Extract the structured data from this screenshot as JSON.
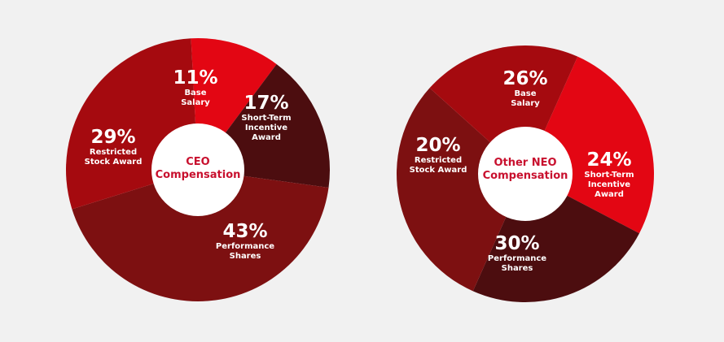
{
  "colors": {
    "background": "#f1f1f1",
    "base_salary": "#e30613",
    "short_term_incentive": "#4c0d0f",
    "performance_shares": "#7d1011",
    "restricted_stock": "#a50a0f",
    "center_text": "#c8102e"
  },
  "chart_data": [
    {
      "type": "pie",
      "title": "CEO\nCompensation",
      "slices": [
        {
          "label": "Base\nSalary",
          "value": 11,
          "display": "11%",
          "color": "#e30613"
        },
        {
          "label": "Short-Term\nIncentive\nAward",
          "value": 17,
          "display": "17%",
          "color": "#4c0d0f"
        },
        {
          "label": "Performance\nShares",
          "value": 43,
          "display": "43%",
          "color": "#7d1011"
        },
        {
          "label": "Restricted\nStock Award",
          "value": 29,
          "display": "29%",
          "color": "#a50a0f"
        }
      ]
    },
    {
      "type": "pie",
      "title": "Other NEO\nCompensation",
      "slices": [
        {
          "label": "Base\nSalary",
          "value": 26,
          "display": "26%",
          "color": "#e30613"
        },
        {
          "label": "Short-Term\nIncentive\nAward",
          "value": 24,
          "display": "24%",
          "color": "#4c0d0f"
        },
        {
          "label": "Performance\nShares",
          "value": 30,
          "display": "30%",
          "color": "#7d1011"
        },
        {
          "label": "Restricted\nStock Award",
          "value": 20,
          "display": "20%",
          "color": "#a50a0f"
        }
      ]
    }
  ]
}
